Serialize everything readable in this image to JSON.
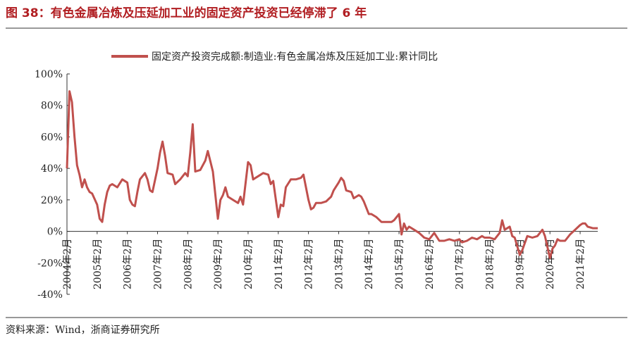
{
  "chart_data": {
    "type": "line",
    "title": "图 38：有色金属冶炼及压延加工业的固定资产投资已经停滞了 6 年",
    "source": "资料来源：Wind，浙商证券研究所",
    "series": [
      {
        "name": "固定资产投资完成额:制造业:有色金属冶炼及压延加工业:累计同比",
        "color": "#c0504d",
        "values": [
          40,
          89,
          82,
          60,
          42,
          36,
          28,
          33,
          28,
          25,
          24,
          17,
          8,
          6,
          17,
          25,
          29,
          30,
          28,
          33,
          31,
          20,
          17,
          16,
          25,
          33,
          37,
          33,
          26,
          25,
          40,
          50,
          57,
          48,
          37,
          36,
          30,
          33,
          37,
          35,
          50,
          68,
          38,
          39,
          45,
          51,
          38,
          8,
          20,
          23,
          28,
          22,
          20,
          18,
          22,
          17,
          44,
          42,
          33,
          35,
          37,
          36,
          30,
          32,
          9,
          17,
          16,
          28,
          33,
          33,
          34,
          36,
          20,
          14,
          15,
          18,
          18,
          19,
          22,
          26,
          31,
          34,
          32,
          26,
          25,
          21,
          23,
          22,
          19,
          11,
          11,
          9,
          6,
          6,
          6,
          7,
          11,
          -2,
          5,
          1,
          3,
          1,
          -1,
          -4,
          -5,
          -3,
          -1,
          -6,
          -6,
          -5,
          -6,
          -5,
          -7,
          -6,
          -4,
          -5,
          -3,
          -4,
          -4,
          -5,
          -1,
          7,
          1,
          3,
          -3,
          -4,
          -15,
          -12,
          -3,
          -4,
          -3,
          1,
          -3,
          -17,
          -11,
          -9,
          -5,
          -6,
          -6,
          -2,
          1,
          4,
          5,
          5,
          3,
          2,
          2
        ]
      }
    ],
    "x": [
      "2004-02",
      "2004-03",
      "2004-04",
      "2004-05",
      "2004-06",
      "2004-07",
      "2004-08",
      "2004-09",
      "2004-10",
      "2004-11",
      "2004-12",
      "2005-02",
      "2005-03",
      "2005-04",
      "2005-05",
      "2005-06",
      "2005-07",
      "2005-08",
      "2005-10",
      "2005-12",
      "2006-02",
      "2006-03",
      "2006-04",
      "2006-05",
      "2006-06",
      "2006-07",
      "2006-09",
      "2006-10",
      "2006-11",
      "2006-12",
      "2007-02",
      "2007-03",
      "2007-04",
      "2007-05",
      "2007-06",
      "2007-08",
      "2007-09",
      "2007-11",
      "2008-01",
      "2008-02",
      "2008-03",
      "2008-04",
      "2008-05",
      "2008-07",
      "2008-09",
      "2008-10",
      "2008-12",
      "2009-02",
      "2009-03",
      "2009-04",
      "2009-05",
      "2009-06",
      "2009-08",
      "2009-10",
      "2009-11",
      "2009-12",
      "2010-02",
      "2010-03",
      "2010-04",
      "2010-06",
      "2010-08",
      "2010-10",
      "2010-11",
      "2010-12",
      "2011-02",
      "2011-03",
      "2011-04",
      "2011-05",
      "2011-07",
      "2011-09",
      "2011-11",
      "2011-12",
      "2012-02",
      "2012-03",
      "2012-04",
      "2012-05",
      "2012-07",
      "2012-09",
      "2012-11",
      "2012-12",
      "2013-02",
      "2013-03",
      "2013-04",
      "2013-05",
      "2013-07",
      "2013-08",
      "2013-10",
      "2013-11",
      "2013-12",
      "2014-02",
      "2014-03",
      "2014-05",
      "2014-07",
      "2014-09",
      "2014-11",
      "2014-12",
      "2015-02",
      "2015-03",
      "2015-04",
      "2015-05",
      "2015-06",
      "2015-08",
      "2015-10",
      "2015-12",
      "2016-02",
      "2016-03",
      "2016-04",
      "2016-06",
      "2016-08",
      "2016-10",
      "2016-12",
      "2017-02",
      "2017-03",
      "2017-05",
      "2017-07",
      "2017-09",
      "2017-11",
      "2017-12",
      "2018-02",
      "2018-04",
      "2018-06",
      "2018-07",
      "2018-08",
      "2018-10",
      "2018-11",
      "2018-12",
      "2019-02",
      "2019-03",
      "2019-05",
      "2019-07",
      "2019-09",
      "2019-11",
      "2019-12",
      "2020-02",
      "2020-03",
      "2020-04",
      "2020-05",
      "2020-06",
      "2020-08",
      "2020-10",
      "2020-12",
      "2021-02",
      "2021-03",
      "2021-04",
      "2021-05",
      "2021-07",
      "2021-09"
    ],
    "xlim": [
      "2004-02",
      "2021-09"
    ],
    "xticks": [
      {
        "value": "2004-02",
        "label": "2004年2月"
      },
      {
        "value": "2005-02",
        "label": "2005年2月"
      },
      {
        "value": "2006-02",
        "label": "2006年2月"
      },
      {
        "value": "2007-02",
        "label": "2007年2月"
      },
      {
        "value": "2008-02",
        "label": "2008年2月"
      },
      {
        "value": "2009-02",
        "label": "2009年2月"
      },
      {
        "value": "2010-02",
        "label": "2010年2月"
      },
      {
        "value": "2011-02",
        "label": "2011年2月"
      },
      {
        "value": "2012-02",
        "label": "2012年2月"
      },
      {
        "value": "2013-02",
        "label": "2013年2月"
      },
      {
        "value": "2014-02",
        "label": "2014年2月"
      },
      {
        "value": "2015-02",
        "label": "2015年2月"
      },
      {
        "value": "2016-02",
        "label": "2016年2月"
      },
      {
        "value": "2017-02",
        "label": "2017年2月"
      },
      {
        "value": "2018-02",
        "label": "2018年2月"
      },
      {
        "value": "2019-02",
        "label": "2019年2月"
      },
      {
        "value": "2020-02",
        "label": "2020年2月"
      },
      {
        "value": "2021-02",
        "label": "2021年2月"
      }
    ],
    "ylim": [
      -40,
      100
    ],
    "yticks": [
      {
        "value": -40,
        "label": "-40%"
      },
      {
        "value": -20,
        "label": "-20%"
      },
      {
        "value": 0,
        "label": "0%"
      },
      {
        "value": 20,
        "label": "20%"
      },
      {
        "value": 40,
        "label": "40%"
      },
      {
        "value": 60,
        "label": "60%"
      },
      {
        "value": 80,
        "label": "80%"
      },
      {
        "value": 100,
        "label": "100%"
      }
    ],
    "grid": false,
    "legend": "top"
  }
}
